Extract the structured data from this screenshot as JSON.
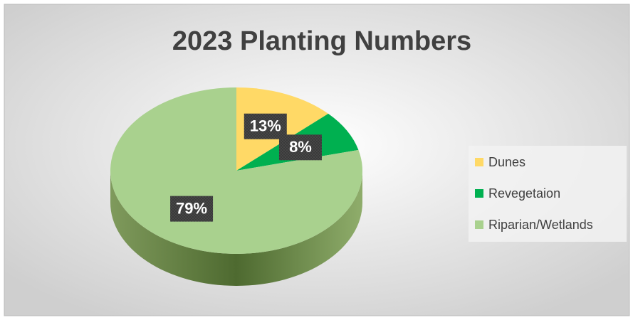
{
  "chart_data": {
    "type": "pie",
    "title": "2023 Planting Numbers",
    "categories": [
      "Dunes",
      "Revegetaion",
      "Riparian/Wetlands"
    ],
    "values": [
      13,
      8,
      79
    ],
    "value_labels": [
      "13%",
      "8%",
      "79%"
    ],
    "colors": [
      "#ffd966",
      "#00b050",
      "#a9d18e"
    ],
    "legend": "right"
  }
}
